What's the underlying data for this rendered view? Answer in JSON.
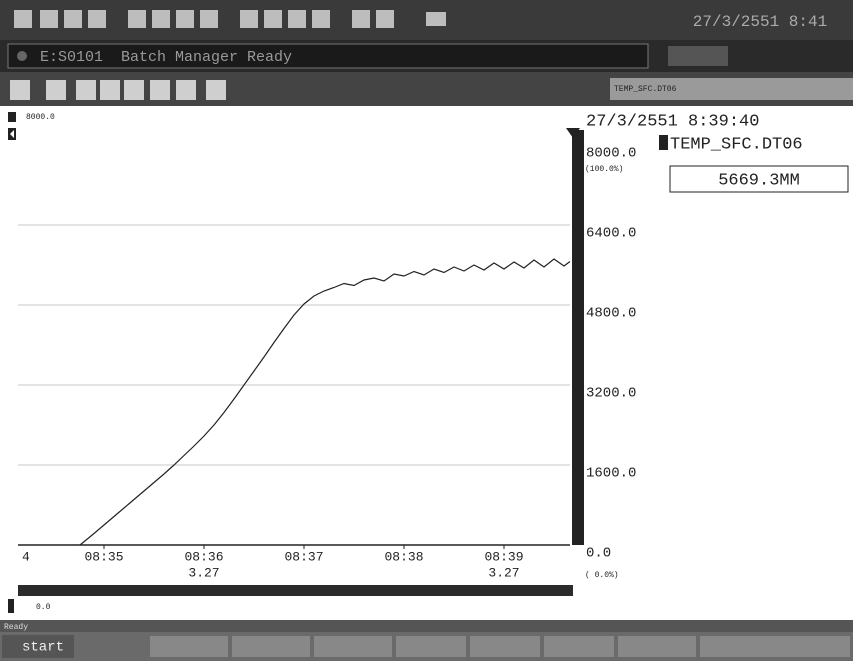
{
  "title_bar": {
    "datetime": "27/3/2551 8:41"
  },
  "status_bar": {
    "message": "E:S0101  Batch Manager Ready"
  },
  "tag_tab": "TEMP_SFC.DT06",
  "cursor": {
    "datetime": "27/3/2551 8:39:40",
    "tag": "TEMP_SFC.DT06",
    "value": "5669.3MM"
  },
  "chart_data": {
    "type": "line",
    "color": "#222222",
    "grid": true,
    "x": [
      514.76,
      514.9,
      515.0,
      515.1,
      515.2,
      515.3,
      515.4,
      515.5,
      515.6,
      515.7,
      515.8,
      515.9,
      516.0,
      516.1,
      516.2,
      516.3,
      516.4,
      516.5,
      516.6,
      516.7,
      516.8,
      516.9,
      517.0,
      517.1,
      517.2,
      517.3,
      517.4,
      517.5,
      517.6,
      517.7,
      517.8,
      517.9,
      518.0,
      518.1,
      518.2,
      518.3,
      518.4,
      518.5,
      518.6,
      518.7,
      518.8,
      518.9,
      519.0,
      519.1,
      519.2,
      519.3,
      519.4,
      519.5,
      519.6,
      519.66
    ],
    "values": [
      0,
      230,
      400,
      570,
      740,
      910,
      1080,
      1250,
      1420,
      1600,
      1790,
      1980,
      2180,
      2400,
      2650,
      2920,
      3200,
      3480,
      3760,
      4050,
      4330,
      4600,
      4820,
      4980,
      5080,
      5150,
      5230,
      5190,
      5300,
      5340,
      5280,
      5420,
      5380,
      5470,
      5400,
      5520,
      5450,
      5560,
      5480,
      5600,
      5500,
      5640,
      5520,
      5660,
      5540,
      5700,
      5560,
      5720,
      5580,
      5669.3
    ],
    "xlim": [
      514.14,
      519.66
    ],
    "ylim": [
      0,
      8000
    ],
    "xticks": [
      {
        "value": 514,
        "label": "4"
      },
      {
        "value": 515,
        "label": "08:35"
      },
      {
        "value": 516,
        "label": "08:36"
      },
      {
        "value": 517,
        "label": "08:37"
      },
      {
        "value": 518,
        "label": "08:38"
      },
      {
        "value": 519,
        "label": "08:39"
      }
    ],
    "date_labels": [
      {
        "value": 516,
        "label": "3.27"
      },
      {
        "value": 519,
        "label": "3.27"
      }
    ],
    "yticks": [
      {
        "value": 8000,
        "label": "8000.0"
      },
      {
        "value": 6400,
        "label": "6400.0"
      },
      {
        "value": 4800,
        "label": "4800.0"
      },
      {
        "value": 3200,
        "label": "3200.0"
      },
      {
        "value": 1600,
        "label": "1600.0"
      },
      {
        "value": 0,
        "label": "0.0"
      }
    ],
    "percent_labels": [
      "(100.0%)",
      "( 0.0%)"
    ],
    "left_scale": [
      "8000.0",
      "0.0"
    ]
  },
  "status_text": "Ready",
  "taskbar": {
    "start": "start"
  }
}
